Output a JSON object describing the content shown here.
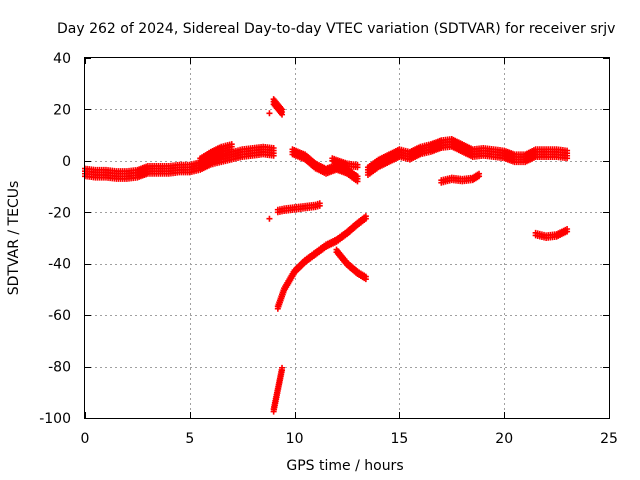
{
  "chart_data": {
    "type": "scatter",
    "title": "Day 262 of 2024, Sidereal Day-to-day VTEC variation (SDTVAR) for receiver srjv",
    "xlabel": "GPS time / hours",
    "ylabel": "SDTVAR / TECUs",
    "xlim": [
      0,
      25
    ],
    "ylim": [
      -100,
      40
    ],
    "xticks": [
      0,
      5,
      10,
      15,
      20,
      25
    ],
    "yticks": [
      -100,
      -80,
      -60,
      -40,
      -20,
      0,
      20,
      40
    ],
    "grid": true,
    "marker": "plus",
    "color": "#ff0000",
    "segments": [
      {
        "x": [
          0.0,
          0.5,
          1.0,
          1.5,
          2.0,
          2.5,
          3.0,
          3.5,
          4.0,
          4.5,
          5.0,
          5.5,
          6.0,
          6.5,
          7.0,
          7.5,
          8.0,
          8.5,
          9.0
        ],
        "y": [
          -4.5,
          -5.0,
          -5.0,
          -5.5,
          -5.5,
          -5.0,
          -3.5,
          -3.5,
          -3.5,
          -3.0,
          -3.0,
          -2.0,
          0.0,
          1.0,
          2.0,
          3.0,
          3.5,
          4.0,
          3.5
        ],
        "band": 4
      },
      {
        "x": [
          5.5,
          6.0,
          6.5,
          7.0
        ],
        "y": [
          -1.0,
          1.5,
          3.5,
          4.5
        ],
        "band": 5
      },
      {
        "x": [
          9.0,
          9.2,
          9.4
        ],
        "y": [
          23.0,
          21.0,
          19.0
        ],
        "band": 3
      },
      {
        "x": [
          8.8
        ],
        "y": [
          18.5
        ],
        "band": 1
      },
      {
        "x": [
          8.8
        ],
        "y": [
          -22.5
        ],
        "band": 1
      },
      {
        "x": [
          9.2,
          9.5,
          10.0,
          10.5,
          11.0,
          11.2
        ],
        "y": [
          -19.5,
          -19.0,
          -18.5,
          -18.0,
          -17.5,
          -17.0
        ],
        "band": 2
      },
      {
        "x": [
          9.0,
          9.1,
          9.2,
          9.3,
          9.4
        ],
        "y": [
          -97.0,
          -93.0,
          -89.0,
          -85.0,
          -81.0
        ],
        "band": 2
      },
      {
        "x": [
          9.2,
          9.5,
          10.0,
          10.5,
          11.0,
          11.5,
          12.0,
          12.5,
          13.0,
          13.4
        ],
        "y": [
          -57.0,
          -50.0,
          -43.0,
          -39.0,
          -36.0,
          -33.0,
          -31.0,
          -28.0,
          -24.5,
          -22.0
        ],
        "band": 2
      },
      {
        "x": [
          12.0,
          12.5,
          13.0,
          13.4
        ],
        "y": [
          -35.0,
          -40.0,
          -43.5,
          -45.5
        ],
        "band": 2
      },
      {
        "x": [
          9.9,
          10.5,
          11.0,
          11.5,
          12.0,
          12.5,
          13.0
        ],
        "y": [
          3.5,
          1.5,
          -2.0,
          -4.0,
          -2.5,
          -4.0,
          -7.0
        ],
        "band": 3
      },
      {
        "x": [
          11.8,
          12.5,
          13.0
        ],
        "y": [
          0.5,
          -1.5,
          -2.0
        ],
        "band": 2
      },
      {
        "x": [
          13.5,
          14.0,
          14.5,
          15.0,
          15.5,
          16.0,
          16.5,
          17.0,
          17.5,
          18.0,
          18.5,
          19.0,
          19.5,
          20.0,
          20.5,
          21.0,
          21.5,
          22.0,
          22.5,
          23.0
        ],
        "y": [
          -4.0,
          -1.0,
          1.0,
          3.0,
          2.0,
          4.0,
          5.0,
          6.5,
          7.0,
          5.0,
          3.0,
          3.5,
          3.0,
          2.5,
          1.0,
          1.0,
          3.0,
          3.0,
          3.0,
          2.5
        ],
        "band": 4
      },
      {
        "x": [
          17.0,
          17.5,
          18.0,
          18.5,
          18.8
        ],
        "y": [
          -8.0,
          -7.0,
          -7.5,
          -7.0,
          -5.5
        ],
        "band": 2
      },
      {
        "x": [
          21.5,
          22.0,
          22.5,
          23.0
        ],
        "y": [
          -28.5,
          -29.5,
          -29.0,
          -27.0
        ],
        "band": 2
      }
    ]
  }
}
